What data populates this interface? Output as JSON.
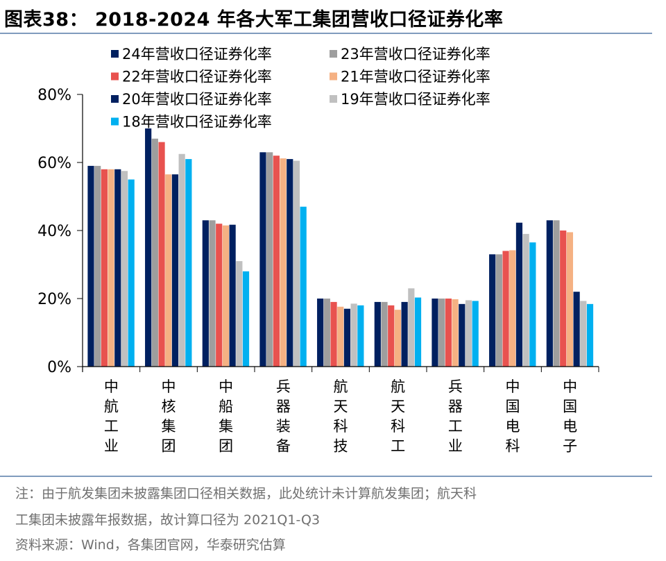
{
  "header": {
    "title": "图表38：  2018-2024 年各大军工集团营收口径证券化率"
  },
  "footer": {
    "note_line1": "注：由于航发集团未披露集团口径相关数据，此处统计未计算航发集团；航天科",
    "note_line2": "工集团未披露年报数据，故计算口径为 2021Q1-Q3",
    "source": "资料来源：Wind，各集团官网，华泰研究估算"
  },
  "chart_data": {
    "type": "bar",
    "categories": [
      "中航工业",
      "中核集团",
      "中船集团",
      "兵器装备",
      "航天科技",
      "航天科工",
      "兵器工业",
      "中国电科",
      "中国电子"
    ],
    "ylim": [
      0,
      0.8
    ],
    "yticks": [
      0,
      0.2,
      0.4,
      0.6,
      0.8
    ],
    "ytick_labels": [
      "0%",
      "20%",
      "40%",
      "60%",
      "80%"
    ],
    "xlabel": "",
    "ylabel": "",
    "legend_position": "top-left",
    "series": [
      {
        "name": "24年营收口径证券化率",
        "color": "#002060",
        "values": [
          0.59,
          0.7,
          0.43,
          0.63,
          0.2,
          0.19,
          0.2,
          0.33,
          0.43
        ]
      },
      {
        "name": "23年营收口径证券化率",
        "color": "#9e9e9e",
        "values": [
          0.59,
          0.67,
          0.43,
          0.63,
          0.2,
          0.19,
          0.2,
          0.33,
          0.43
        ]
      },
      {
        "name": "22年营收口径证券化率",
        "color": "#e8524f",
        "values": [
          0.58,
          0.66,
          0.42,
          0.62,
          0.19,
          0.18,
          0.2,
          0.34,
          0.4
        ]
      },
      {
        "name": "21年营收口径证券化率",
        "color": "#f5b183",
        "values": [
          0.58,
          0.565,
          0.415,
          0.612,
          0.176,
          0.167,
          0.198,
          0.342,
          0.395
        ]
      },
      {
        "name": "20年营收口径证券化率",
        "color": "#002060",
        "values": [
          0.58,
          0.565,
          0.417,
          0.61,
          0.17,
          0.19,
          0.184,
          0.423,
          0.22
        ]
      },
      {
        "name": "19年营收口径证券化率",
        "color": "#c0c0c0",
        "values": [
          0.575,
          0.625,
          0.31,
          0.605,
          0.185,
          0.23,
          0.195,
          0.39,
          0.193
        ]
      },
      {
        "name": "18年营收口径证券化率",
        "color": "#00b0f0",
        "values": [
          0.55,
          0.61,
          0.28,
          0.47,
          0.18,
          0.203,
          0.193,
          0.365,
          0.184
        ]
      }
    ]
  }
}
